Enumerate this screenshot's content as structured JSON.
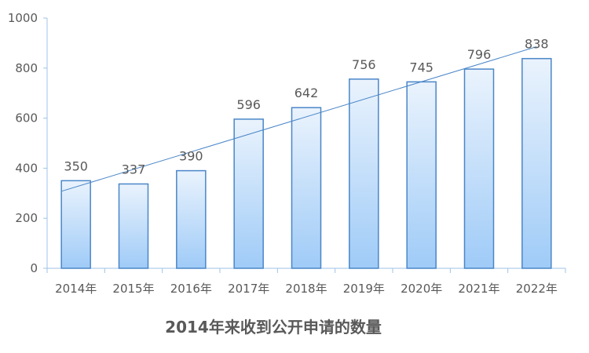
{
  "chart_data": {
    "type": "bar",
    "title": "2014年来收到公开申请的数量",
    "xlabel": "",
    "ylabel": "",
    "categories": [
      "2014年",
      "2015年",
      "2016年",
      "2017年",
      "2018年",
      "2019年",
      "2020年",
      "2021年",
      "2022年"
    ],
    "values": [
      350,
      337,
      390,
      596,
      642,
      756,
      745,
      796,
      838
    ],
    "ylim": [
      0,
      1000
    ],
    "yticks": [
      "0",
      "200",
      "400",
      "600",
      "800",
      "1000"
    ],
    "trendline": "linear",
    "grid": false,
    "legend": "none",
    "colors": {
      "bar_top": "#eaf3fd",
      "bar_bottom": "#9fcbf7",
      "bar_stroke": "#4a86c8",
      "trend": "#4a86c8",
      "axis": "#9fc3e7",
      "text": "#595959"
    }
  }
}
